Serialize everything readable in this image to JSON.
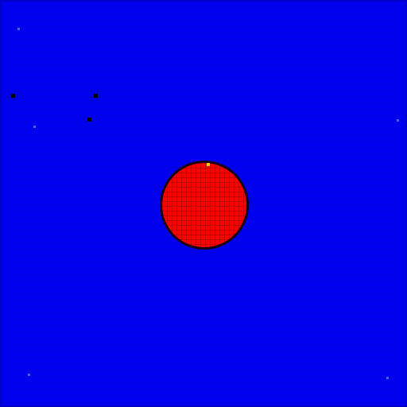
{
  "scene": {
    "background_color": "#0000f0",
    "border_color": "#0000c8",
    "speck_color": "#3a6cff",
    "dark_mark_color": "#000000"
  },
  "ball": {
    "color": "#ff0000",
    "outline_color": "#1a0010",
    "glint_color": "#ffd000"
  }
}
